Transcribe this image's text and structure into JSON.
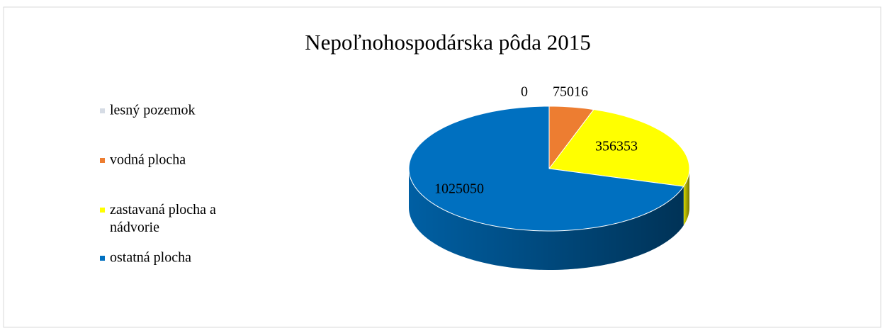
{
  "chart_data": {
    "type": "pie",
    "title": "Nepoľnohospodárska pôda 2015",
    "categories": [
      "lesný pozemok",
      "vodná plocha",
      "zastavaná plocha a nádvorie",
      "ostatná plocha"
    ],
    "values": [
      0,
      75016,
      356353,
      1025050
    ],
    "colors": [
      "#d6dce5",
      "#ed7d31",
      "#ffff00",
      "#0070c0"
    ],
    "legend": "left",
    "three_d": true
  }
}
